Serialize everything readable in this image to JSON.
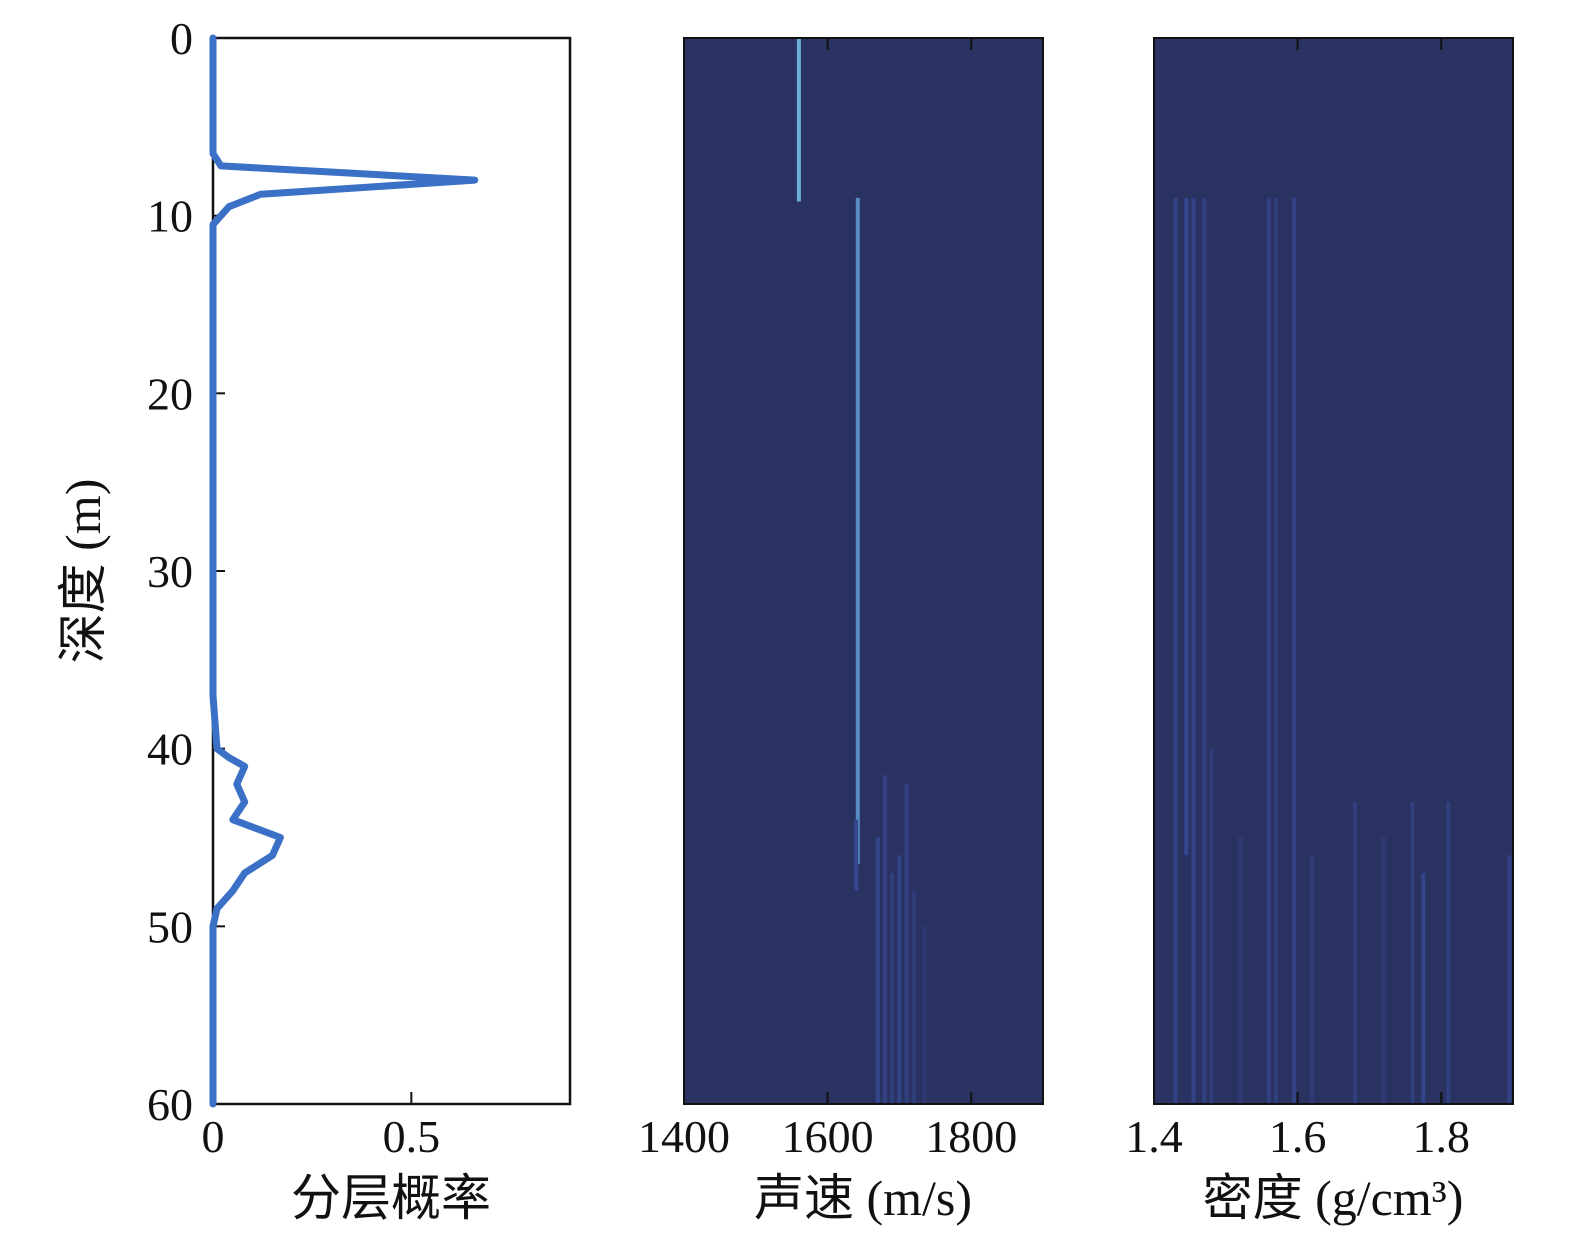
{
  "colors": {
    "probability_line": "#3a70c6",
    "heatmap_background": "#2a3262",
    "heatmap_trace_dim": "#34478f",
    "heatmap_trace_bright": "#6fbce0",
    "axis": "#111111"
  },
  "chart_data": [
    {
      "type": "line",
      "xlabel": "分层概率",
      "ylabel": "深度 (m)",
      "xlim": [
        0,
        0.9
      ],
      "ylim": [
        0,
        60
      ],
      "y_reversed": true,
      "xticks": [
        "0",
        "0.5"
      ],
      "yticks": [
        "0",
        "10",
        "20",
        "30",
        "40",
        "50",
        "60"
      ],
      "grid": false,
      "series": [
        {
          "depth": [
            0,
            6.5,
            7.2,
            8.0,
            8.8,
            9.5,
            10.5,
            20,
            30,
            37,
            40,
            40.5,
            41,
            42,
            43,
            44,
            45,
            46,
            47,
            48,
            49,
            50,
            60
          ],
          "probability": [
            0.0,
            0.0,
            0.02,
            0.66,
            0.12,
            0.04,
            0.0,
            0.0,
            0.0,
            0.0,
            0.01,
            0.04,
            0.08,
            0.06,
            0.08,
            0.05,
            0.17,
            0.15,
            0.08,
            0.05,
            0.01,
            0.0,
            0.0
          ]
        }
      ]
    },
    {
      "type": "heatmap",
      "xlabel": "声速 (m/s)",
      "xlim": [
        1400,
        1900
      ],
      "ylim": [
        0,
        60
      ],
      "y_reversed": true,
      "xticks": [
        "1400",
        "1600",
        "1800"
      ],
      "yticks_shown": false,
      "grid": false,
      "traces": [
        {
          "value": 1560,
          "depth_from": 0,
          "depth_to": 9.2,
          "intensity": 0.9
        },
        {
          "value": 1642,
          "depth_from": 9.0,
          "depth_to": 46.5,
          "intensity": 0.6
        },
        {
          "value": 1640,
          "depth_from": 44,
          "depth_to": 48,
          "intensity": 0.35
        },
        {
          "value": 1670,
          "depth_from": 45,
          "depth_to": 60,
          "intensity": 0.3
        },
        {
          "value": 1680,
          "depth_from": 41.5,
          "depth_to": 60,
          "intensity": 0.25
        },
        {
          "value": 1690,
          "depth_from": 47,
          "depth_to": 60,
          "intensity": 0.2
        },
        {
          "value": 1700,
          "depth_from": 46,
          "depth_to": 60,
          "intensity": 0.28
        },
        {
          "value": 1710,
          "depth_from": 42,
          "depth_to": 60,
          "intensity": 0.22
        },
        {
          "value": 1720,
          "depth_from": 48,
          "depth_to": 60,
          "intensity": 0.18
        },
        {
          "value": 1735,
          "depth_from": 50,
          "depth_to": 60,
          "intensity": 0.12
        }
      ]
    },
    {
      "type": "heatmap",
      "xlabel": "密度 (g/cm³)",
      "xlim": [
        1.4,
        1.9
      ],
      "ylim": [
        0,
        60
      ],
      "y_reversed": true,
      "xticks": [
        "1.4",
        "1.6",
        "1.8"
      ],
      "yticks_shown": false,
      "grid": false,
      "traces": [
        {
          "value": 1.43,
          "depth_from": 9,
          "depth_to": 60,
          "intensity": 0.25
        },
        {
          "value": 1.445,
          "depth_from": 9,
          "depth_to": 46,
          "intensity": 0.45
        },
        {
          "value": 1.455,
          "depth_from": 9,
          "depth_to": 60,
          "intensity": 0.25
        },
        {
          "value": 1.47,
          "depth_from": 9,
          "depth_to": 60,
          "intensity": 0.22
        },
        {
          "value": 1.48,
          "depth_from": 40,
          "depth_to": 60,
          "intensity": 0.18
        },
        {
          "value": 1.52,
          "depth_from": 45,
          "depth_to": 60,
          "intensity": 0.15
        },
        {
          "value": 1.56,
          "depth_from": 9,
          "depth_to": 60,
          "intensity": 0.22
        },
        {
          "value": 1.57,
          "depth_from": 9,
          "depth_to": 60,
          "intensity": 0.2
        },
        {
          "value": 1.595,
          "depth_from": 9,
          "depth_to": 60,
          "intensity": 0.25
        },
        {
          "value": 1.62,
          "depth_from": 46,
          "depth_to": 60,
          "intensity": 0.15
        },
        {
          "value": 1.68,
          "depth_from": 43,
          "depth_to": 60,
          "intensity": 0.2
        },
        {
          "value": 1.72,
          "depth_from": 45,
          "depth_to": 60,
          "intensity": 0.15
        },
        {
          "value": 1.76,
          "depth_from": 43,
          "depth_to": 60,
          "intensity": 0.2
        },
        {
          "value": 1.775,
          "depth_from": 47,
          "depth_to": 60,
          "intensity": 0.3
        },
        {
          "value": 1.81,
          "depth_from": 43,
          "depth_to": 60,
          "intensity": 0.22
        },
        {
          "value": 1.895,
          "depth_from": 46,
          "depth_to": 60,
          "intensity": 0.25
        }
      ]
    }
  ]
}
